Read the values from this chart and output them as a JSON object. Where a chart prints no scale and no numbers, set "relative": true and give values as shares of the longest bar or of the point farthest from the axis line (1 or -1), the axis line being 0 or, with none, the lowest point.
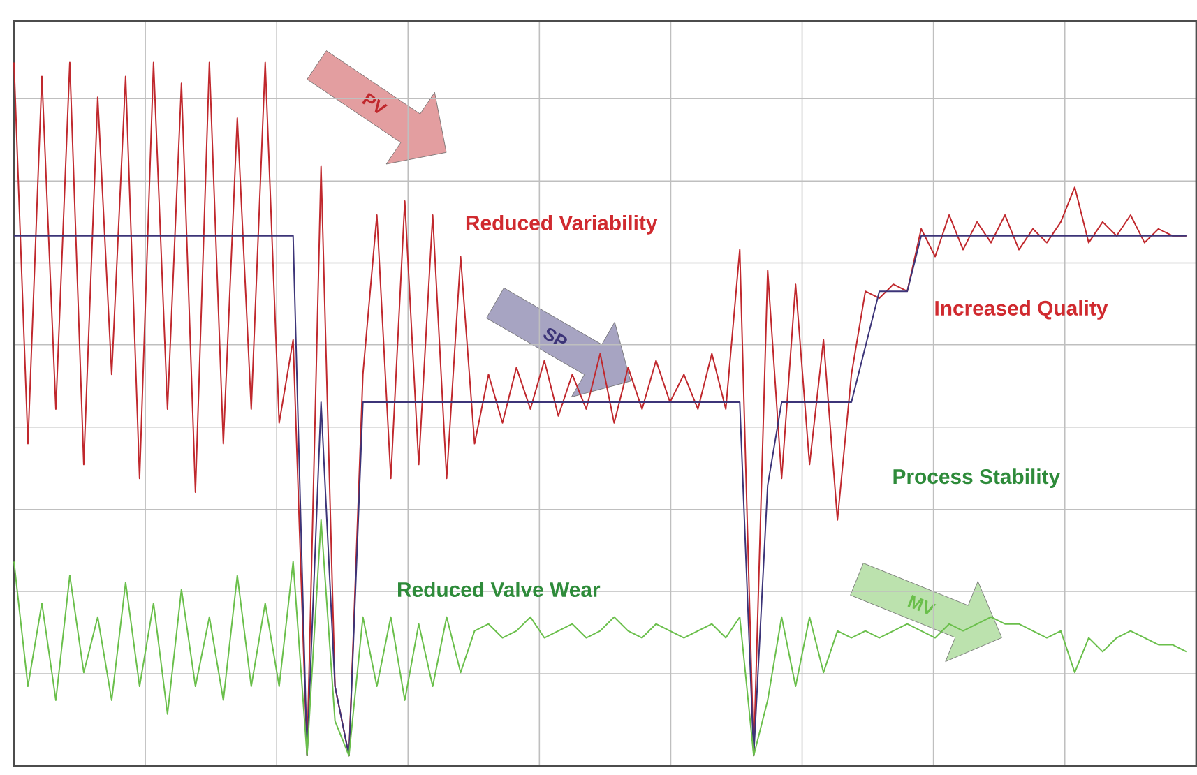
{
  "chart_data": {
    "type": "line",
    "relative": true,
    "grid": true,
    "categories": [
      null,
      null,
      null,
      null,
      null,
      null,
      null,
      null,
      null,
      null,
      null,
      null,
      null,
      null,
      null,
      null,
      null,
      null,
      null,
      null,
      null,
      null,
      null,
      null,
      null,
      null,
      null,
      null,
      null,
      null,
      null,
      null,
      null,
      null,
      null,
      null,
      null,
      null,
      null,
      null,
      null,
      null,
      null,
      null,
      null,
      null,
      null,
      null,
      null,
      null,
      null,
      null,
      null,
      null,
      null,
      null,
      null,
      null,
      null,
      null,
      null,
      null,
      null,
      null,
      null,
      null,
      null,
      null,
      null,
      null,
      null,
      null,
      null,
      null,
      null,
      null,
      null,
      null,
      null,
      null,
      null,
      null,
      null,
      null,
      null
    ],
    "series": [
      {
        "name": "PV",
        "color": "#c0282d",
        "values": [
          1.0,
          0.45,
          0.98,
          0.5,
          1.0,
          0.42,
          0.95,
          0.55,
          0.98,
          0.4,
          1.0,
          0.5,
          0.97,
          0.38,
          1.0,
          0.45,
          0.92,
          0.5,
          1.0,
          0.48,
          0.6,
          0.0,
          0.85,
          0.1,
          0.0,
          0.55,
          0.78,
          0.4,
          0.8,
          0.42,
          0.78,
          0.4,
          0.72,
          0.45,
          0.55,
          0.48,
          0.56,
          0.5,
          0.57,
          0.49,
          0.55,
          0.5,
          0.58,
          0.48,
          0.56,
          0.5,
          0.57,
          0.51,
          0.55,
          0.5,
          0.58,
          0.5,
          0.73,
          0.0,
          0.7,
          0.4,
          0.68,
          0.42,
          0.6,
          0.34,
          0.55,
          0.67,
          0.66,
          0.68,
          0.67,
          0.76,
          0.72,
          0.78,
          0.73,
          0.77,
          0.74,
          0.78,
          0.73,
          0.76,
          0.74,
          0.77,
          0.82,
          0.74,
          0.77,
          0.75,
          0.78,
          0.74,
          0.76,
          0.75,
          0.75
        ]
      },
      {
        "name": "SP",
        "color": "#3c3478",
        "values": [
          0.75,
          0.75,
          0.75,
          0.75,
          0.75,
          0.75,
          0.75,
          0.75,
          0.75,
          0.75,
          0.75,
          0.75,
          0.75,
          0.75,
          0.75,
          0.75,
          0.75,
          0.75,
          0.75,
          0.75,
          0.75,
          0.0,
          0.51,
          0.1,
          0.0,
          0.51,
          0.51,
          0.51,
          0.51,
          0.51,
          0.51,
          0.51,
          0.51,
          0.51,
          0.51,
          0.51,
          0.51,
          0.51,
          0.51,
          0.51,
          0.51,
          0.51,
          0.51,
          0.51,
          0.51,
          0.51,
          0.51,
          0.51,
          0.51,
          0.51,
          0.51,
          0.51,
          0.51,
          0.0,
          0.39,
          0.51,
          0.51,
          0.51,
          0.51,
          0.51,
          0.51,
          0.59,
          0.67,
          0.67,
          0.67,
          0.75,
          0.75,
          0.75,
          0.75,
          0.75,
          0.75,
          0.75,
          0.75,
          0.75,
          0.75,
          0.75,
          0.75,
          0.75,
          0.75,
          0.75,
          0.75,
          0.75,
          0.75,
          0.75,
          0.75
        ]
      },
      {
        "name": "MV",
        "color": "#6abf4b",
        "values": [
          0.28,
          0.1,
          0.22,
          0.08,
          0.26,
          0.12,
          0.2,
          0.08,
          0.25,
          0.1,
          0.22,
          0.06,
          0.24,
          0.1,
          0.2,
          0.08,
          0.26,
          0.1,
          0.22,
          0.1,
          0.28,
          0.0,
          0.34,
          0.05,
          0.0,
          0.2,
          0.1,
          0.2,
          0.08,
          0.19,
          0.1,
          0.2,
          0.12,
          0.18,
          0.19,
          0.17,
          0.18,
          0.2,
          0.17,
          0.18,
          0.19,
          0.17,
          0.18,
          0.2,
          0.18,
          0.17,
          0.19,
          0.18,
          0.17,
          0.18,
          0.19,
          0.17,
          0.2,
          0.0,
          0.08,
          0.2,
          0.1,
          0.2,
          0.12,
          0.18,
          0.17,
          0.18,
          0.17,
          0.18,
          0.19,
          0.18,
          0.17,
          0.19,
          0.18,
          0.19,
          0.2,
          0.19,
          0.19,
          0.18,
          0.17,
          0.18,
          0.12,
          0.17,
          0.15,
          0.17,
          0.18,
          0.17,
          0.16,
          0.16,
          0.15
        ]
      }
    ],
    "annotations": [
      "Reduced Variability",
      "Increased Quality",
      "Process Stability",
      "Reduced Valve Wear"
    ]
  }
}
